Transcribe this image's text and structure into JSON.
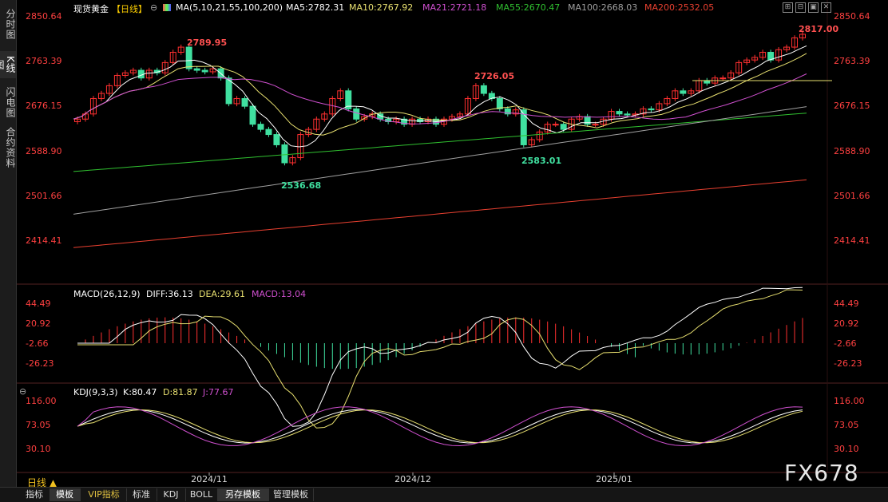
{
  "sidebar": [
    "分时图",
    "K线图",
    "闪电图",
    "合约资料"
  ],
  "header": {
    "name": "现货黄金",
    "period": "【日线】",
    "ma_title": "MA(5,10,21,55,100,200)",
    "ma": [
      {
        "label": "MA5:2782.31",
        "color": "#ffffff"
      },
      {
        "label": "MA10:2767.92",
        "color": "#e8e070"
      },
      {
        "label": "MA21:2721.18",
        "color": "#d050d0"
      },
      {
        "label": "MA55:2670.47",
        "color": "#30c030"
      },
      {
        "label": "MA100:2668.03",
        "color": "#a0a0a0"
      },
      {
        "label": "MA200:2532.05",
        "color": "#e84030"
      }
    ]
  },
  "price_axis": [
    "2850.64",
    "2763.39",
    "2676.15",
    "2588.90",
    "2501.66",
    "2414.41"
  ],
  "annotations": [
    "2789.95",
    "2726.05",
    "2536.68",
    "2583.01",
    "2817.00"
  ],
  "macd": {
    "title": "MACD(26,12,9)",
    "diff": "DIFF:36.13",
    "dea": "DEA:29.61",
    "macd": "MACD:13.04",
    "axis": [
      "44.49",
      "20.92",
      "-2.66",
      "-26.23"
    ]
  },
  "kdj": {
    "title": "KDJ(9,3,3)",
    "k": "K:80.47",
    "d": "D:81.87",
    "j": "J:77.67",
    "axis": [
      "116.00",
      "73.05",
      "30.10"
    ]
  },
  "dates": [
    "2024/11",
    "2024/12",
    "2025/01"
  ],
  "period_select": "日线",
  "tabs": [
    "指标",
    "模板",
    "VIP指标",
    "标准",
    "KDJ",
    "BOLL",
    "另存模板",
    "管理模板"
  ],
  "watermark": "FX678",
  "colors": {
    "up": "#ff3030",
    "down": "#40e0a0",
    "axis": "#ff4040"
  }
}
